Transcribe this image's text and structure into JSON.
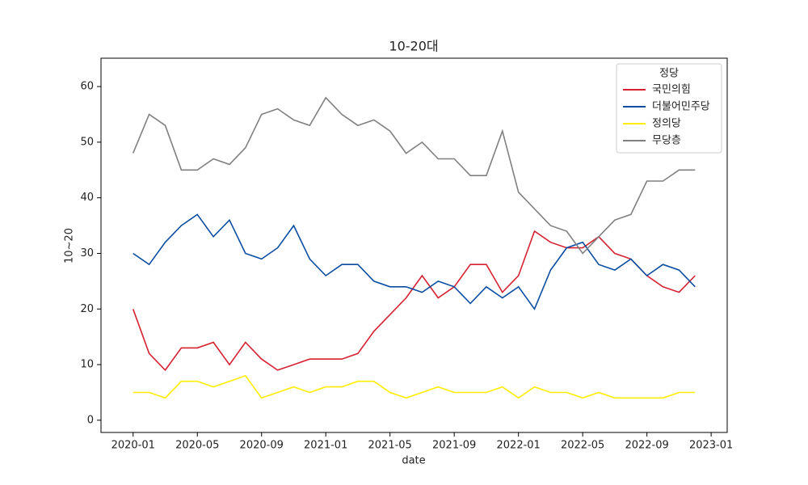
{
  "chart_data": {
    "type": "line",
    "title": "10-20대",
    "x_label": "date",
    "y_label": "10~20",
    "x": [
      "2020-01",
      "2020-02",
      "2020-03",
      "2020-04",
      "2020-05",
      "2020-06",
      "2020-07",
      "2020-08",
      "2020-09",
      "2020-10",
      "2020-11",
      "2020-12",
      "2021-01",
      "2021-02",
      "2021-03",
      "2021-04",
      "2021-05",
      "2021-06",
      "2021-07",
      "2021-08",
      "2021-09",
      "2021-10",
      "2021-11",
      "2021-12",
      "2022-01",
      "2022-02",
      "2022-03",
      "2022-04",
      "2022-05",
      "2022-06",
      "2022-07",
      "2022-08",
      "2022-09",
      "2022-10",
      "2022-11",
      "2022-12"
    ],
    "series": [
      {
        "name": "국민의힘",
        "color": "#d62130",
        "values": [
          20,
          12,
          9,
          13,
          13,
          14,
          10,
          14,
          11,
          9,
          10,
          11,
          11,
          11,
          12,
          16,
          19,
          22,
          26,
          22,
          24,
          28,
          28,
          23,
          26,
          34,
          32,
          31,
          31,
          33,
          30,
          29,
          26,
          24,
          23,
          26
        ]
      },
      {
        "name": "더불어민주당",
        "color": "#0a4da2",
        "values": [
          30,
          28,
          32,
          35,
          37,
          33,
          36,
          30,
          29,
          31,
          35,
          29,
          26,
          28,
          28,
          25,
          24,
          24,
          23,
          25,
          24,
          21,
          24,
          22,
          24,
          20,
          27,
          31,
          32,
          28,
          27,
          29,
          26,
          28,
          27,
          24
        ]
      },
      {
        "name": "정의당",
        "color": "#ffed00",
        "values": [
          5,
          5,
          4,
          7,
          7,
          6,
          7,
          8,
          4,
          5,
          6,
          5,
          6,
          6,
          7,
          7,
          5,
          4,
          5,
          6,
          5,
          5,
          5,
          6,
          4,
          6,
          5,
          5,
          4,
          5,
          4,
          4,
          4,
          4,
          5,
          5
        ]
      },
      {
        "name": "무당층",
        "color": "#808080",
        "values": [
          48,
          55,
          53,
          45,
          45,
          47,
          46,
          49,
          55,
          56,
          54,
          53,
          58,
          55,
          53,
          54,
          52,
          48,
          50,
          47,
          47,
          44,
          44,
          52,
          41,
          38,
          35,
          34,
          30,
          33,
          36,
          37,
          43,
          43,
          45,
          45
        ]
      }
    ],
    "xlim": [
      "2019-11",
      "2023-02"
    ],
    "xticks": [
      "2020-01",
      "2020-05",
      "2020-09",
      "2021-01",
      "2021-05",
      "2021-09",
      "2022-01",
      "2022-05",
      "2022-09",
      "2023-01"
    ],
    "ylim": [
      -2.2,
      65.1
    ],
    "yticks": [
      0,
      10,
      20,
      30,
      40,
      50,
      60
    ],
    "legend_title": "정당",
    "legend": "upper right",
    "grid": false
  }
}
